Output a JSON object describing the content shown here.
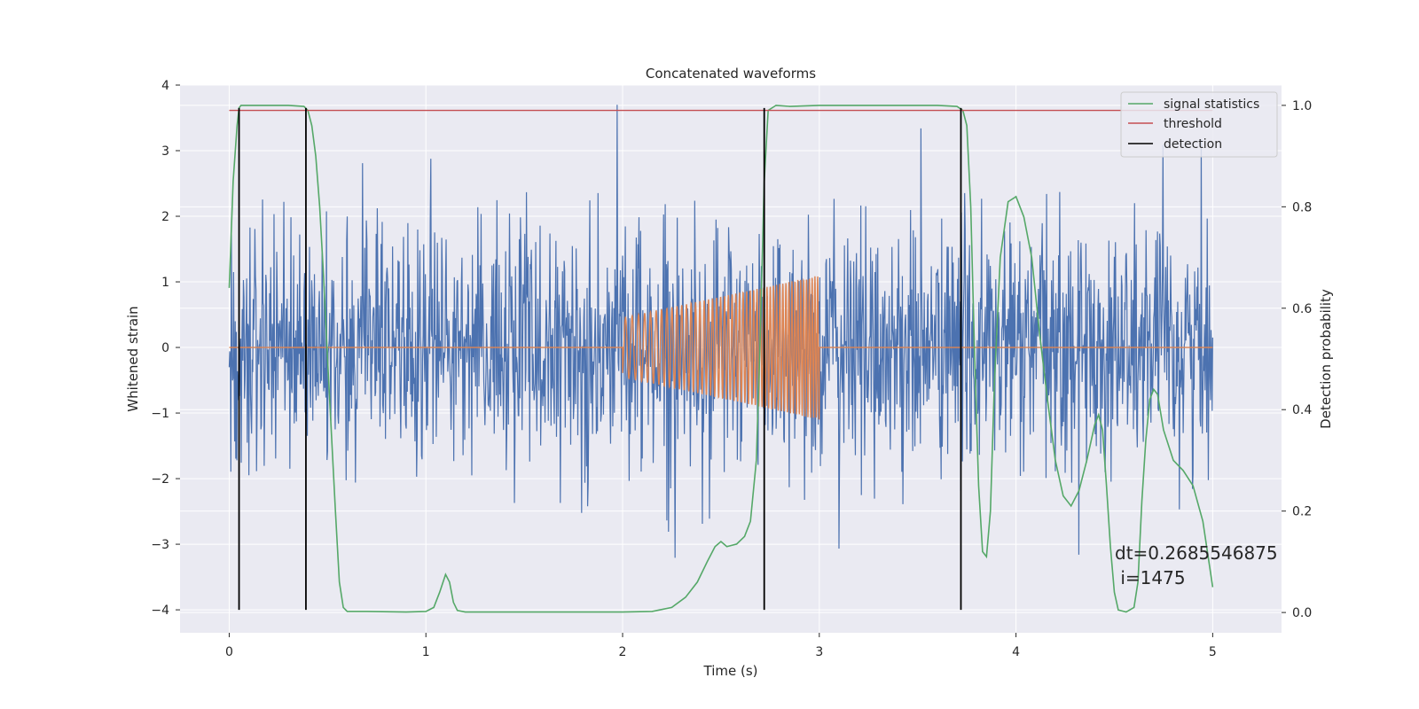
{
  "chart_data": {
    "type": "line",
    "title": "Concatenated waveforms",
    "xlabel": "Time (s)",
    "ylabel": "Whitened strain",
    "y2label": "Detection probability",
    "xlim": [
      -0.25,
      5.35
    ],
    "ylim": [
      -4.35,
      4.0
    ],
    "y2lim": [
      -0.04,
      1.04
    ],
    "x_ticks": [
      0,
      1,
      2,
      3,
      4,
      5
    ],
    "y_ticks": [
      -4,
      -3,
      -2,
      -1,
      0,
      1,
      2,
      3,
      4
    ],
    "y2_ticks": [
      0.0,
      0.2,
      0.4,
      0.6,
      0.8,
      1.0
    ],
    "y2_tick_labels": [
      "0.0",
      "0.2",
      "0.4",
      "0.6",
      "0.8",
      "1.0"
    ],
    "grid": true,
    "legend_position": "top-right",
    "colors": {
      "background": "#eaeaf2",
      "grid": "#ffffff",
      "noise": "#4c72b0",
      "injected": "#dd8452",
      "signal_statistics": "#55a868",
      "threshold": "#c44e52",
      "detection": "#000000"
    },
    "series": [
      {
        "name": "strain",
        "axis": "left",
        "description_values": "whitened noise, amplitude mostly within ±2, peaks to about ±3.7",
        "x_range": [
          0,
          5
        ],
        "peak_abs": 3.7
      },
      {
        "name": "waveform",
        "axis": "left",
        "segments": [
          {
            "x_start": 0,
            "x_end": 2,
            "y": 0
          },
          {
            "x_start": 2,
            "x_end": 3,
            "chirp": true,
            "amp_start": 0.45,
            "amp_end": 1.1
          },
          {
            "x_start": 3,
            "x_end": 5,
            "y": 0
          }
        ]
      },
      {
        "name": "signal statistics",
        "axis": "right",
        "x": [
          0.0,
          0.02,
          0.04,
          0.05,
          0.06,
          0.08,
          0.1,
          0.15,
          0.2,
          0.3,
          0.38,
          0.4,
          0.42,
          0.44,
          0.46,
          0.48,
          0.5,
          0.52,
          0.54,
          0.56,
          0.58,
          0.6,
          0.7,
          0.9,
          1.0,
          1.04,
          1.07,
          1.1,
          1.12,
          1.14,
          1.16,
          1.2,
          1.5,
          2.0,
          2.15,
          2.25,
          2.32,
          2.38,
          2.43,
          2.47,
          2.5,
          2.53,
          2.58,
          2.62,
          2.65,
          2.68,
          2.7,
          2.72,
          2.74,
          2.78,
          2.85,
          3.0,
          3.3,
          3.6,
          3.7,
          3.73,
          3.75,
          3.77,
          3.79,
          3.81,
          3.83,
          3.85,
          3.87,
          3.89,
          3.92,
          3.96,
          4.0,
          4.04,
          4.08,
          4.12,
          4.16,
          4.2,
          4.24,
          4.28,
          4.32,
          4.36,
          4.4,
          4.42,
          4.44,
          4.46,
          4.48,
          4.5,
          4.52,
          4.56,
          4.6,
          4.62,
          4.64,
          4.66,
          4.68,
          4.7,
          4.72,
          4.75,
          4.8,
          4.85,
          4.9,
          4.95,
          5.0
        ],
        "y": [
          0.64,
          0.85,
          0.96,
          0.995,
          1.0,
          1.0,
          1.0,
          1.0,
          1.0,
          1.0,
          0.998,
          0.99,
          0.96,
          0.9,
          0.8,
          0.66,
          0.5,
          0.35,
          0.2,
          0.06,
          0.01,
          0.002,
          0.002,
          0.001,
          0.002,
          0.01,
          0.04,
          0.075,
          0.06,
          0.02,
          0.004,
          0.001,
          0.001,
          0.001,
          0.002,
          0.01,
          0.03,
          0.06,
          0.1,
          0.13,
          0.14,
          0.13,
          0.135,
          0.15,
          0.18,
          0.3,
          0.55,
          0.85,
          0.99,
          1.0,
          0.998,
          1.0,
          1.0,
          1.0,
          0.998,
          0.99,
          0.96,
          0.8,
          0.5,
          0.25,
          0.12,
          0.11,
          0.2,
          0.45,
          0.7,
          0.81,
          0.82,
          0.78,
          0.7,
          0.55,
          0.42,
          0.3,
          0.23,
          0.21,
          0.24,
          0.3,
          0.37,
          0.39,
          0.36,
          0.25,
          0.13,
          0.04,
          0.005,
          0.001,
          0.01,
          0.06,
          0.22,
          0.34,
          0.42,
          0.44,
          0.43,
          0.36,
          0.3,
          0.28,
          0.25,
          0.18,
          0.05
        ]
      },
      {
        "name": "threshold",
        "axis": "right",
        "x": [
          0,
          5
        ],
        "y": [
          0.99,
          0.99
        ]
      },
      {
        "name": "detection",
        "axis": "left",
        "x": [
          0.05,
          0.39,
          2.72,
          3.72
        ],
        "y_range": [
          -4.0,
          3.65
        ]
      }
    ],
    "legend": [
      "signal statistics",
      "threshold",
      "detection"
    ],
    "annotation_line1": "dt=0.2685546875",
    "annotation_line2": " i=1475",
    "annotation_position": "lower-right"
  }
}
